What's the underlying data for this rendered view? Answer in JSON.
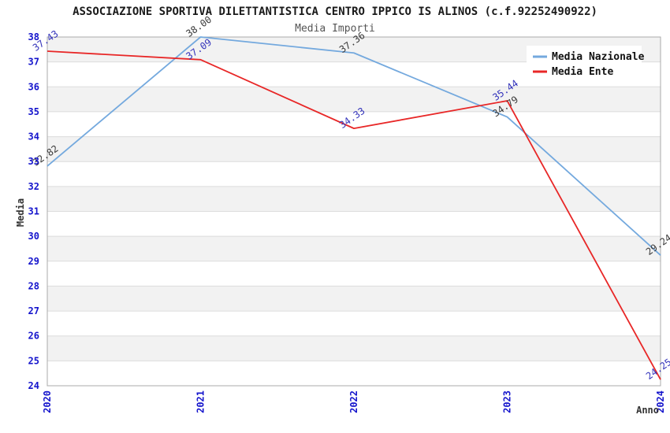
{
  "chart_data": {
    "type": "line",
    "title": "ASSOCIAZIONE SPORTIVA DILETTANTISTICA CENTRO IPPICO IS ALINOS (c.f.92252490922)",
    "subtitle": "Media Importi",
    "xlabel": "Anno",
    "ylabel": "Media",
    "categories": [
      "2020",
      "2021",
      "2022",
      "2023",
      "2024"
    ],
    "series": [
      {
        "name": "Media Nazionale",
        "color": "#74A9DE",
        "label_color": "#3a3a3a",
        "values": [
          32.82,
          38.0,
          37.36,
          34.79,
          29.24
        ]
      },
      {
        "name": "Media Ente",
        "color": "#E82727",
        "label_color": "#3434BB",
        "values": [
          37.43,
          37.09,
          34.33,
          35.44,
          24.25
        ]
      }
    ],
    "ylim": [
      24,
      38
    ],
    "ytick_step": 1,
    "grid": true,
    "legend_position": "top-right",
    "colors": {
      "tick_label": "#1414CC",
      "band_fill": "#F2F2F2",
      "grid_line": "#DCDCDC",
      "plot_border": "#ABABAB",
      "legend_bg": "#FFFFFF"
    }
  }
}
